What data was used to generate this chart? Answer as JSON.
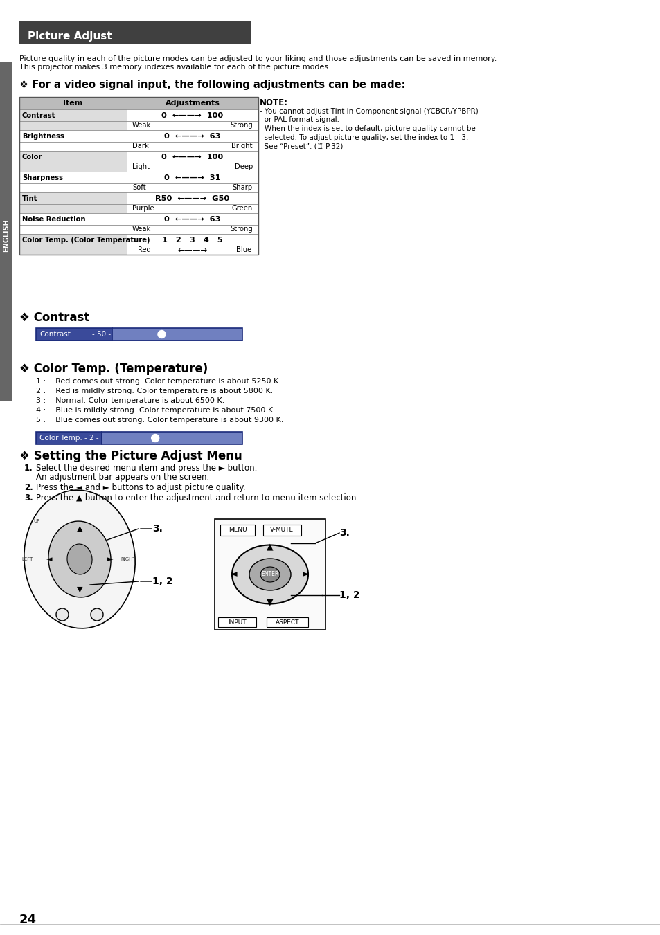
{
  "page_bg": "#ffffff",
  "title_bar_bg": "#404040",
  "title_bar_text": "Picture Adjust",
  "title_bar_text_color": "#ffffff",
  "left_bar_bg": "#666666",
  "left_bar_text": "ENGLISH",
  "intro_text1": "Picture quality in each of the picture modes can be adjusted to your liking and those adjustments can be saved in memory.",
  "intro_text2": "This projector makes 3 memory indexes available for each of the picture modes.",
  "section1_title": "❖ For a video signal input, the following adjustments can be made:",
  "table_header_bg": "#bbbbbb",
  "table_row_bg_dark": "#dddddd",
  "table_row_bg_light": "#ffffff",
  "table_items": [
    {
      "item": "Contrast",
      "adj": "0  ←——→  100",
      "sub_left": "Weak",
      "sub_right": "Strong"
    },
    {
      "item": "Brightness",
      "adj": "0  ←——→  63",
      "sub_left": "Dark",
      "sub_right": "Bright"
    },
    {
      "item": "Color",
      "adj": "0  ←——→  100",
      "sub_left": "Light",
      "sub_right": "Deep"
    },
    {
      "item": "Sharpness",
      "adj": "0  ←——→  31",
      "sub_left": "Soft",
      "sub_right": "Sharp"
    },
    {
      "item": "Tint",
      "adj": "R50  ←——→  G50",
      "sub_left": "Purple",
      "sub_right": "Green"
    },
    {
      "item": "Noise Reduction",
      "adj": "0  ←——→  63",
      "sub_left": "Weak",
      "sub_right": "Strong"
    },
    {
      "item": "Color Temp. (Color Temperature)",
      "adj": "1   2   3   4   5",
      "sub_left": "Red",
      "sub_right": "Blue",
      "sub_arrow": true
    }
  ],
  "note_title": "NOTE:",
  "note_lines": [
    "- You cannot adjust Tint in Component signal (YCBCR/YPBPR)",
    "  or PAL format signal.",
    "- When the index is set to default, picture quality cannot be",
    "  selected. To adjust picture quality, set the index to 1 - 3.",
    "  See “Preset”. (♖ P.32)"
  ],
  "section2_title": "❖ Contrast",
  "contrast_bar_label": "Contrast",
  "contrast_bar_value": "- 50 -",
  "section3_title": "❖ Color Temp. (Temperature)",
  "color_temp_items": [
    "1 :    Red comes out strong. Color temperature is about 5250 K.",
    "2 :    Red is mildly strong. Color temperature is about 5800 K.",
    "3 :    Normal. Color temperature is about 6500 K.",
    "4 :    Blue is mildly strong. Color temperature is about 7500 K.",
    "5 :    Blue comes out strong. Color temperature is about 9300 K."
  ],
  "color_temp_bar_label": "Color Temp.",
  "color_temp_bar_value": "- 2 -",
  "section4_title": "❖ Setting the Picture Adjust Menu",
  "setting_steps": [
    {
      "num": "1.",
      "text": "Select the desired menu item and press the ► button.",
      "extra": "An adjustment bar appears on the screen."
    },
    {
      "num": "2.",
      "text": "Press the ◄ and ► buttons to adjust picture quality.",
      "extra": ""
    },
    {
      "num": "3.",
      "text": "Press the ▲ button to enter the adjustment and return to menu item selection.",
      "extra": ""
    }
  ],
  "page_number": "24",
  "bar_dark_blue": "#3a4a9a",
  "bar_light_blue": "#7080c0",
  "bar_border": "#1a2a7a"
}
